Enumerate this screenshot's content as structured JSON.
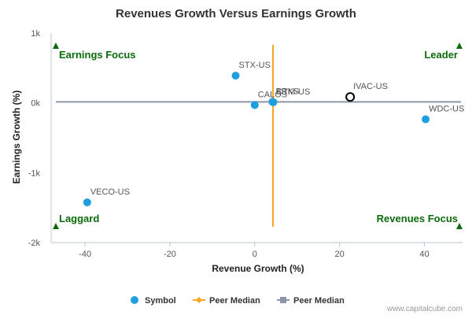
{
  "chart_data": {
    "type": "scatter",
    "title": "Revenues Growth Versus Earnings Growth",
    "xlabel": "Revenue Growth (%)",
    "ylabel": "Earnings Growth (%)",
    "xlim": [
      -48,
      49
    ],
    "ylim": [
      -2000,
      1000
    ],
    "x_ticks": [
      {
        "value": -40,
        "label": "-40"
      },
      {
        "value": -20,
        "label": "-20"
      },
      {
        "value": 0,
        "label": "0"
      },
      {
        "value": 20,
        "label": "20"
      },
      {
        "value": 40,
        "label": "40"
      }
    ],
    "y_ticks": [
      {
        "value": 1000,
        "label": "1k"
      },
      {
        "value": 0,
        "label": "0k"
      },
      {
        "value": -1000,
        "label": "-1k"
      },
      {
        "value": -2000,
        "label": "-2k"
      }
    ],
    "points": [
      {
        "symbol": "STX-US",
        "x": -4.5,
        "y": 390
      },
      {
        "symbol": "CALOS",
        "x": 0.0,
        "y": -30
      },
      {
        "symbol": "BRKS",
        "x": 4.2,
        "y": 15
      },
      {
        "symbol": "CTM-US",
        "x": 4.4,
        "y": 10
      },
      {
        "symbol": "IVAC-US",
        "x": 22.5,
        "y": 85
      },
      {
        "symbol": "WDC-US",
        "x": 40.3,
        "y": -235
      },
      {
        "symbol": "VECO-US",
        "x": -39.5,
        "y": -1425
      }
    ],
    "highlighted_symbol": "IVAC-US",
    "peer_median_revenue_growth": 4.3,
    "peer_median_earnings_growth": 15,
    "quadrants": {
      "top_left": "Earnings Focus",
      "top_right": "Leader",
      "bottom_left": "Laggard",
      "bottom_right": "Revenues Focus"
    },
    "legend": [
      {
        "label": "Symbol",
        "marker": "circle"
      },
      {
        "label": "Peer Median",
        "marker": "diamond-line"
      },
      {
        "label": "Peer Median",
        "marker": "square-line"
      }
    ],
    "grid": false
  },
  "credit": "www.capitalcube.com",
  "colors": {
    "point": "#1f9fe0",
    "revenue_median": "#f5a623",
    "earnings_median": "#8d96a8",
    "quadrant_label": "#0b6a0b",
    "highlight_stroke": "#000000"
  }
}
